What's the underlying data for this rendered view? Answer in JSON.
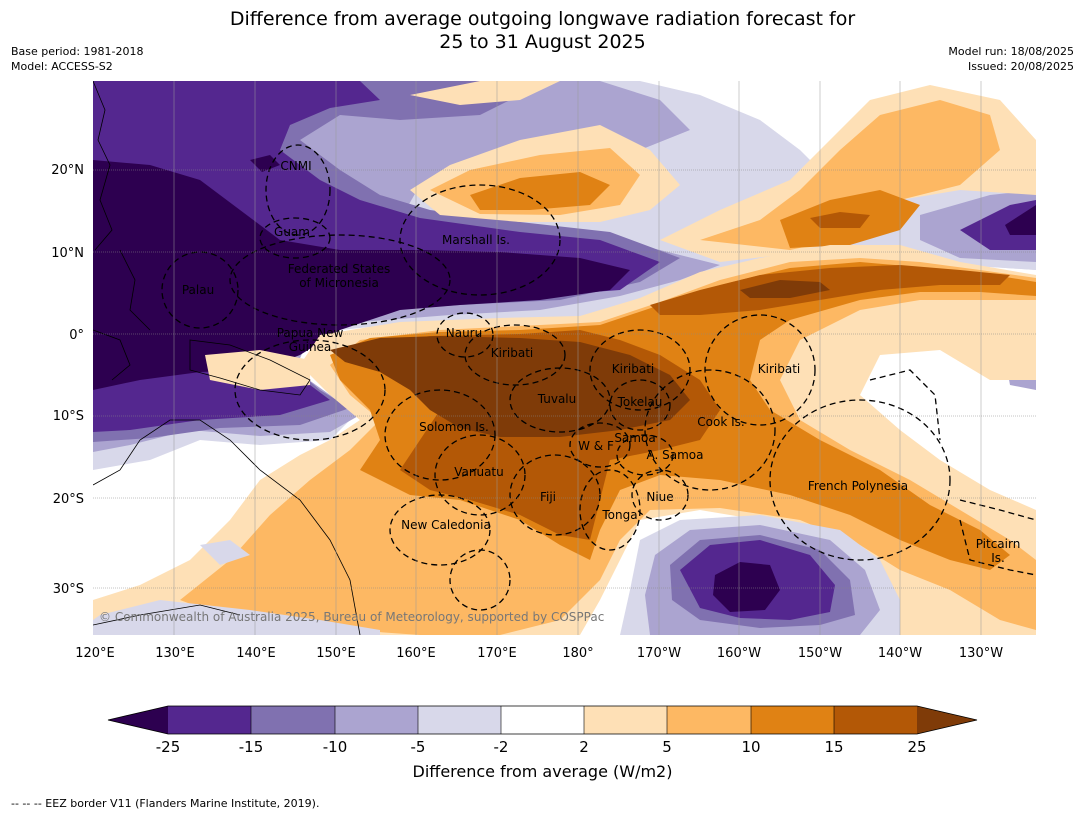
{
  "title_line1": "Difference from average outgoing longwave radiation forecast for",
  "title_line2": "25 to 31 August 2025",
  "meta": {
    "base_period": "Base period: 1981-2018",
    "model": "Model: ACCESS-S2",
    "model_run": "Model run: 18/08/2025",
    "issued": "Issued: 20/08/2025"
  },
  "lat_labels": [
    "20°N",
    "10°N",
    "0°",
    "10°S",
    "20°S",
    "30°S"
  ],
  "lon_labels": [
    "120°E",
    "130°E",
    "140°E",
    "150°E",
    "160°E",
    "170°E",
    "180°",
    "170°W",
    "160°W",
    "150°W",
    "140°W",
    "130°W"
  ],
  "places": {
    "cnmi": "CNMI",
    "guam": "Guam",
    "marshall": "Marshall Is.",
    "fsm1": "Federated States",
    "fsm2": "of Micronesia",
    "palau": "Palau",
    "png1": "Papua New",
    "png2": "Guinea",
    "nauru": "Nauru",
    "kiribati_w": "Kiribati",
    "kiribati_c": "Kiribati",
    "kiribati_e": "Kiribati",
    "tuvalu": "Tuvalu",
    "tokelau": "Tokelau",
    "solomon": "Solomon Is.",
    "samoa": "Samoa",
    "wf": "W & F",
    "asamoa": "A. Samoa",
    "cook": "Cook Is.",
    "vanuatu": "Vanuatu",
    "fiji": "Fiji",
    "niue": "Niue",
    "tonga": "Tonga",
    "frenchpoly": "French Polynesia",
    "newcal": "New Caledonia",
    "pitcairn1": "Pitcairn",
    "pitcairn2": "Is."
  },
  "copyright": "© Commonwealth of Australia 2025, Bureau of Meteorology, supported by COSPPac",
  "colorbar": {
    "title": "Difference from average (W/m2)",
    "ticks": [
      "-25",
      "-15",
      "-10",
      "-5",
      "-2",
      "2",
      "5",
      "10",
      "15",
      "25"
    ],
    "colors": {
      "lt_m25": "#2d0050",
      "m25_m15": "#54278f",
      "m15_m10": "#8071b0",
      "m10_m5": "#aba4d0",
      "m5_m2": "#d8d8ea",
      "m2_2": "#ffffff",
      "p2_5": "#fee0b6",
      "p5_10": "#fdb863",
      "p10_15": "#e08214",
      "p15_25": "#b35806",
      "gt_25": "#7f3b08"
    }
  },
  "footnote": "--  --  -- EEZ border V11 (Flanders Marine Institute, 2019)."
}
